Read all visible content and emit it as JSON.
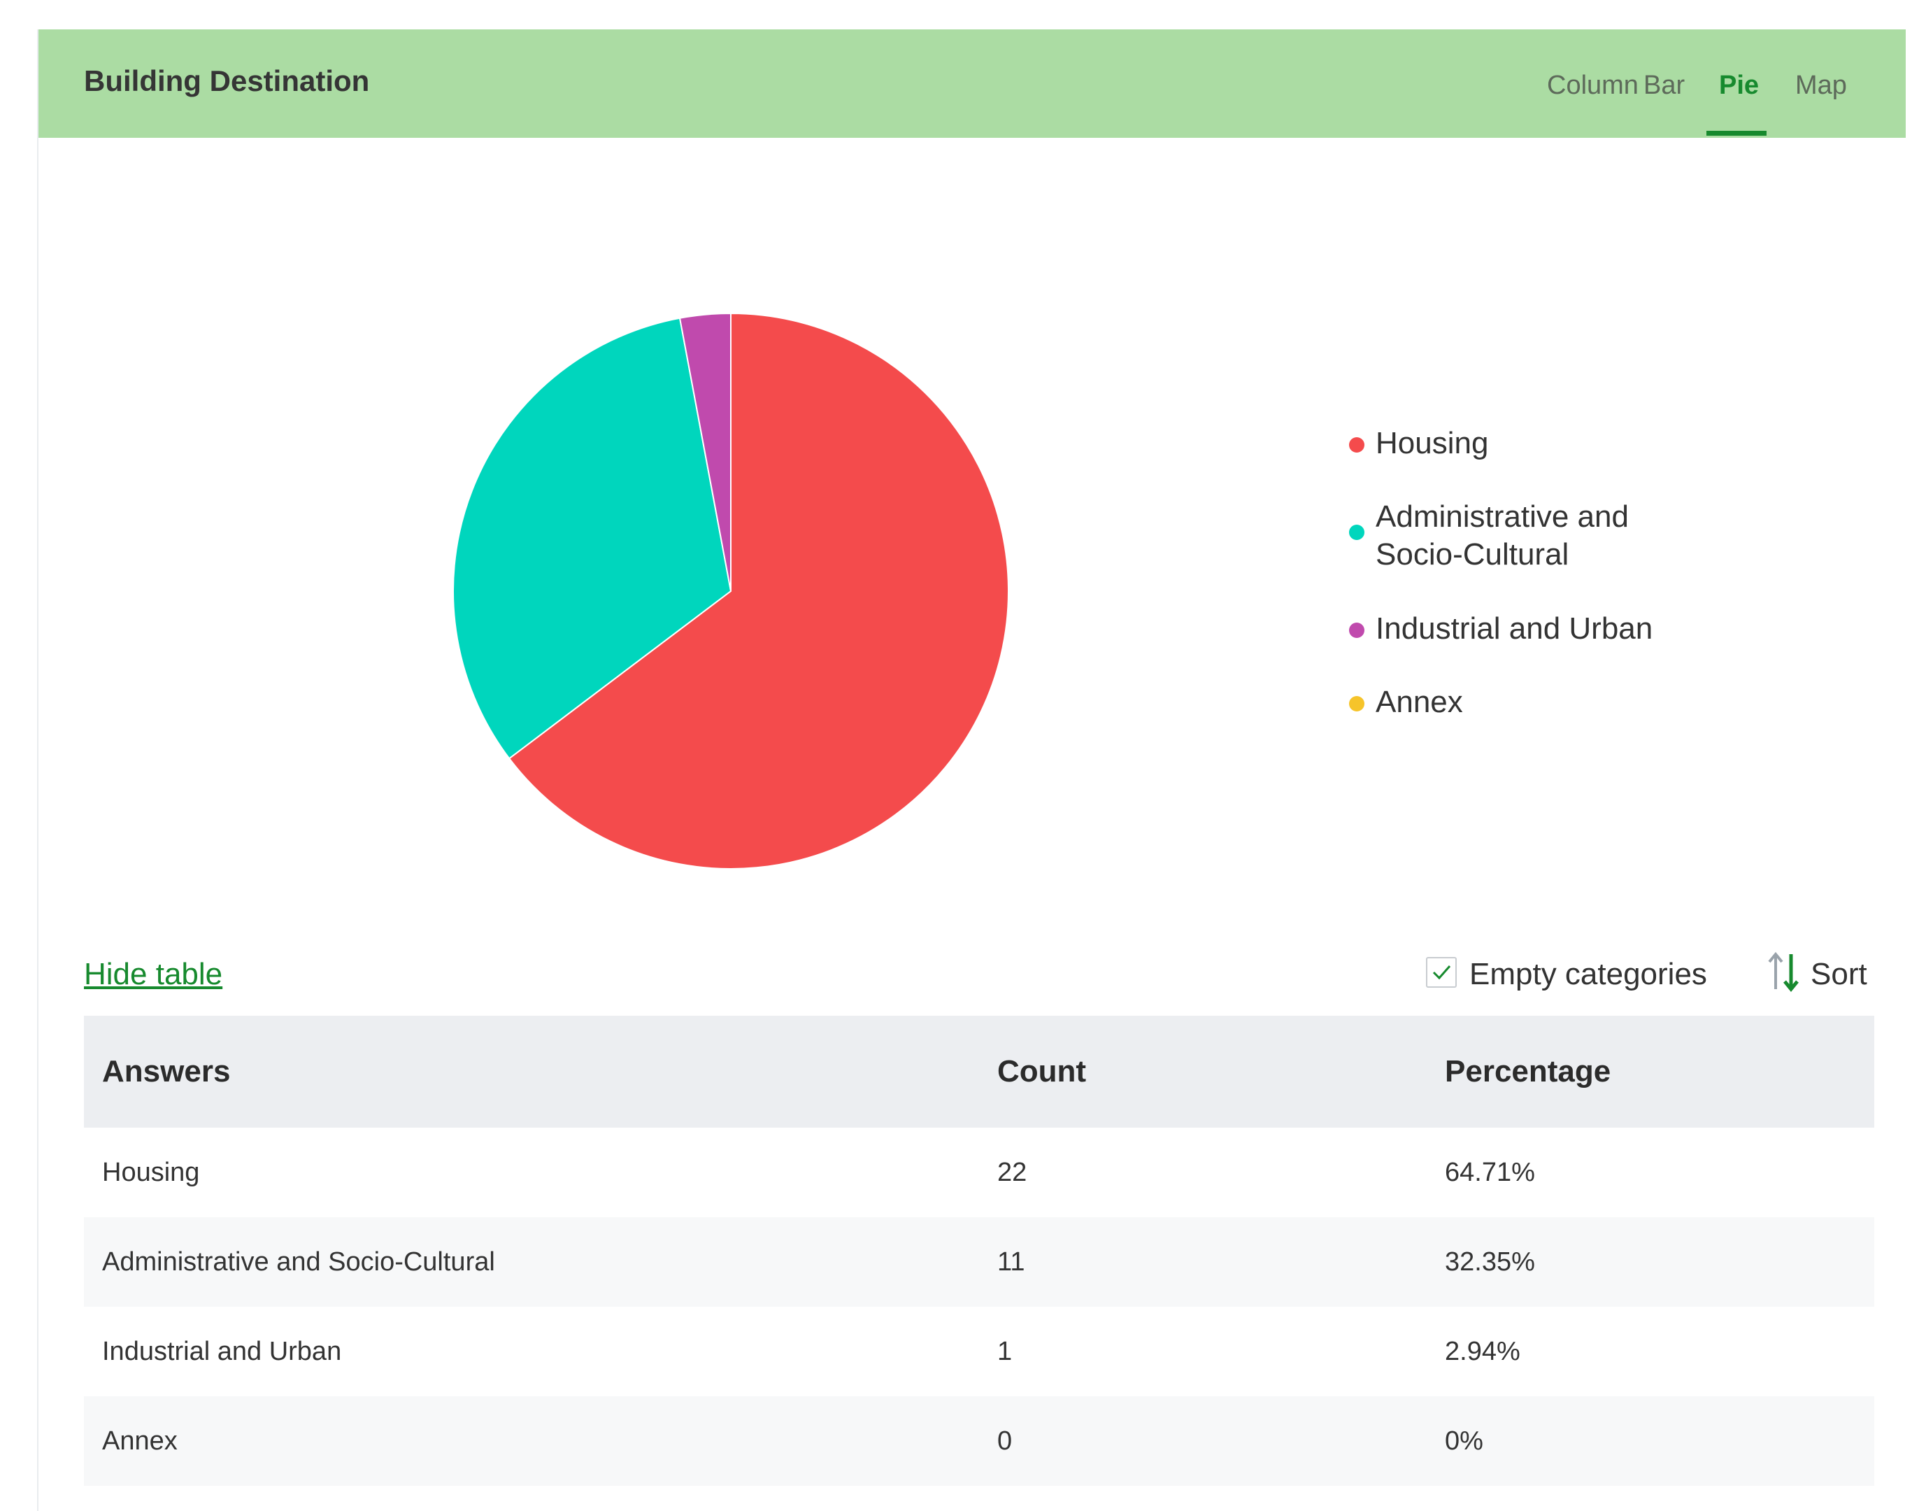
{
  "header": {
    "title": "Building Destination",
    "tabs": [
      {
        "label": "Column",
        "active": false
      },
      {
        "label": "Bar",
        "active": false
      },
      {
        "label": "Pie",
        "active": true
      },
      {
        "label": "Map",
        "active": false
      }
    ]
  },
  "chart_data": {
    "type": "pie",
    "categories": [
      "Housing",
      "Administrative and Socio-Cultural",
      "Industrial and Urban",
      "Annex"
    ],
    "values": [
      22,
      11,
      1,
      0
    ],
    "colors": [
      "#f44b4c",
      "#00d6bd",
      "#c04aad",
      "#f6c42a"
    ],
    "legend": {
      "labels": [
        "Housing",
        "Administrative and",
        "Socio-Cultural",
        "Industrial and Urban",
        "Annex"
      ],
      "position": "right"
    }
  },
  "controls": {
    "hide_table_label": "Hide table",
    "empty_categories_label": "Empty categories",
    "empty_categories_checked": true,
    "sort_label": "Sort"
  },
  "table": {
    "headers": [
      "Answers",
      "Count",
      "Percentage"
    ],
    "rows": [
      [
        "Housing",
        "22",
        "64.71%"
      ],
      [
        "Administrative and Socio-Cultural",
        "11",
        "32.35%"
      ],
      [
        "Industrial and Urban",
        "1",
        "2.94%"
      ],
      [
        "Annex",
        "0",
        "0%"
      ]
    ]
  }
}
